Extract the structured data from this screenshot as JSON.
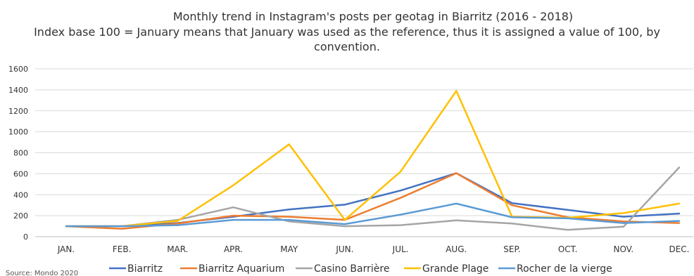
{
  "chart_data": {
    "type": "line",
    "title": "Monthly trend in Instagram's posts per geotag in Biarritz (2016 - 2018)",
    "subtitle_line1": "Index base 100 = January means that January was used as the reference, thus it is assigned a value of 100, by",
    "subtitle_line2": "convention.",
    "categories": [
      "JAN.",
      "FEB.",
      "MAR.",
      "APR.",
      "MAY",
      "JUN.",
      "JUL.",
      "AUG.",
      "SEP.",
      "OCT.",
      "NOV.",
      "DEC."
    ],
    "ylim": [
      0,
      1600
    ],
    "yticks": [
      0,
      200,
      400,
      600,
      800,
      1000,
      1200,
      1400,
      1600
    ],
    "grid": true,
    "legend_position": "bottom",
    "source": "Source: Mondo 2020",
    "series": [
      {
        "name": "Biarritz",
        "color": "#4472C4",
        "values": [
          100,
          100,
          130,
          190,
          260,
          305,
          440,
          605,
          320,
          255,
          190,
          220
        ]
      },
      {
        "name": "Biarritz Aquarium",
        "color": "#ED7D31",
        "values": [
          100,
          75,
          125,
          200,
          190,
          160,
          370,
          605,
          300,
          185,
          145,
          130
        ]
      },
      {
        "name": "Casino Barrière",
        "color": "#A5A5A5",
        "values": [
          100,
          100,
          160,
          280,
          145,
          100,
          110,
          155,
          125,
          65,
          95,
          660
        ]
      },
      {
        "name": "Grande Plage",
        "color": "#FFC000",
        "values": [
          100,
          100,
          150,
          490,
          880,
          160,
          620,
          1390,
          190,
          180,
          225,
          315
        ]
      },
      {
        "name": "Rocher de la vierge",
        "color": "#5B9BD5",
        "values": [
          100,
          100,
          110,
          160,
          160,
          120,
          210,
          315,
          185,
          175,
          130,
          150
        ]
      }
    ]
  }
}
